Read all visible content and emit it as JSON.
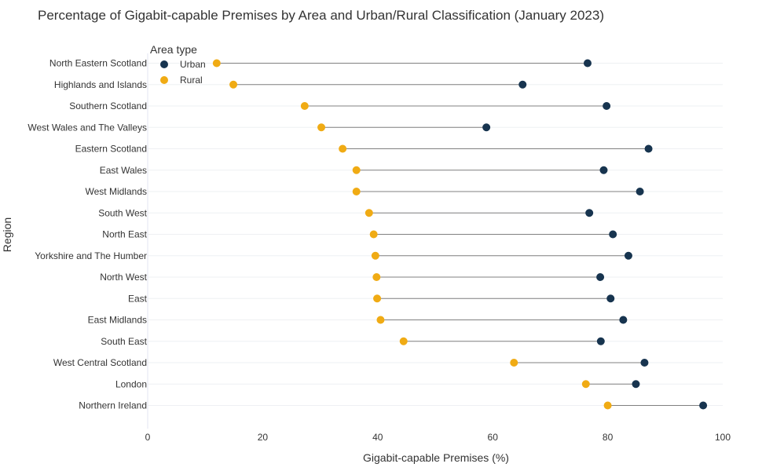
{
  "chart_data": {
    "type": "scatter",
    "subtype": "dumbbell",
    "title": "Percentage of Gigabit-capable Premises by Area and Urban/Rural Classification (January 2023)",
    "xlabel": "Gigabit-capable Premises (%)",
    "ylabel": "Region",
    "xlim": [
      0,
      100
    ],
    "xticks": [
      0,
      20,
      40,
      60,
      80,
      100
    ],
    "grid": true,
    "legend": {
      "title": "Area type",
      "placement": "top-left"
    },
    "categories": [
      "North Eastern Scotland",
      "Highlands and Islands",
      "Southern Scotland",
      "West Wales and The Valleys",
      "Eastern Scotland",
      "East Wales",
      "West Midlands",
      "South West",
      "North East",
      "Yorkshire and The Humber",
      "North West",
      "East",
      "East Midlands",
      "South East",
      "West Central Scotland",
      "London",
      "Northern Ireland"
    ],
    "series": [
      {
        "name": "Urban",
        "color": "#17344f",
        "values": [
          76.5,
          65.2,
          79.8,
          58.9,
          87.1,
          79.3,
          85.6,
          76.8,
          80.9,
          83.6,
          78.7,
          80.5,
          82.7,
          78.8,
          86.4,
          84.9,
          96.6
        ]
      },
      {
        "name": "Rural",
        "color": "#f0ab14",
        "values": [
          12.0,
          14.9,
          27.3,
          30.2,
          33.9,
          36.3,
          36.3,
          38.5,
          39.3,
          39.6,
          39.8,
          39.9,
          40.5,
          44.5,
          63.7,
          76.2,
          80.0
        ]
      }
    ],
    "connector_color": "#808080"
  }
}
